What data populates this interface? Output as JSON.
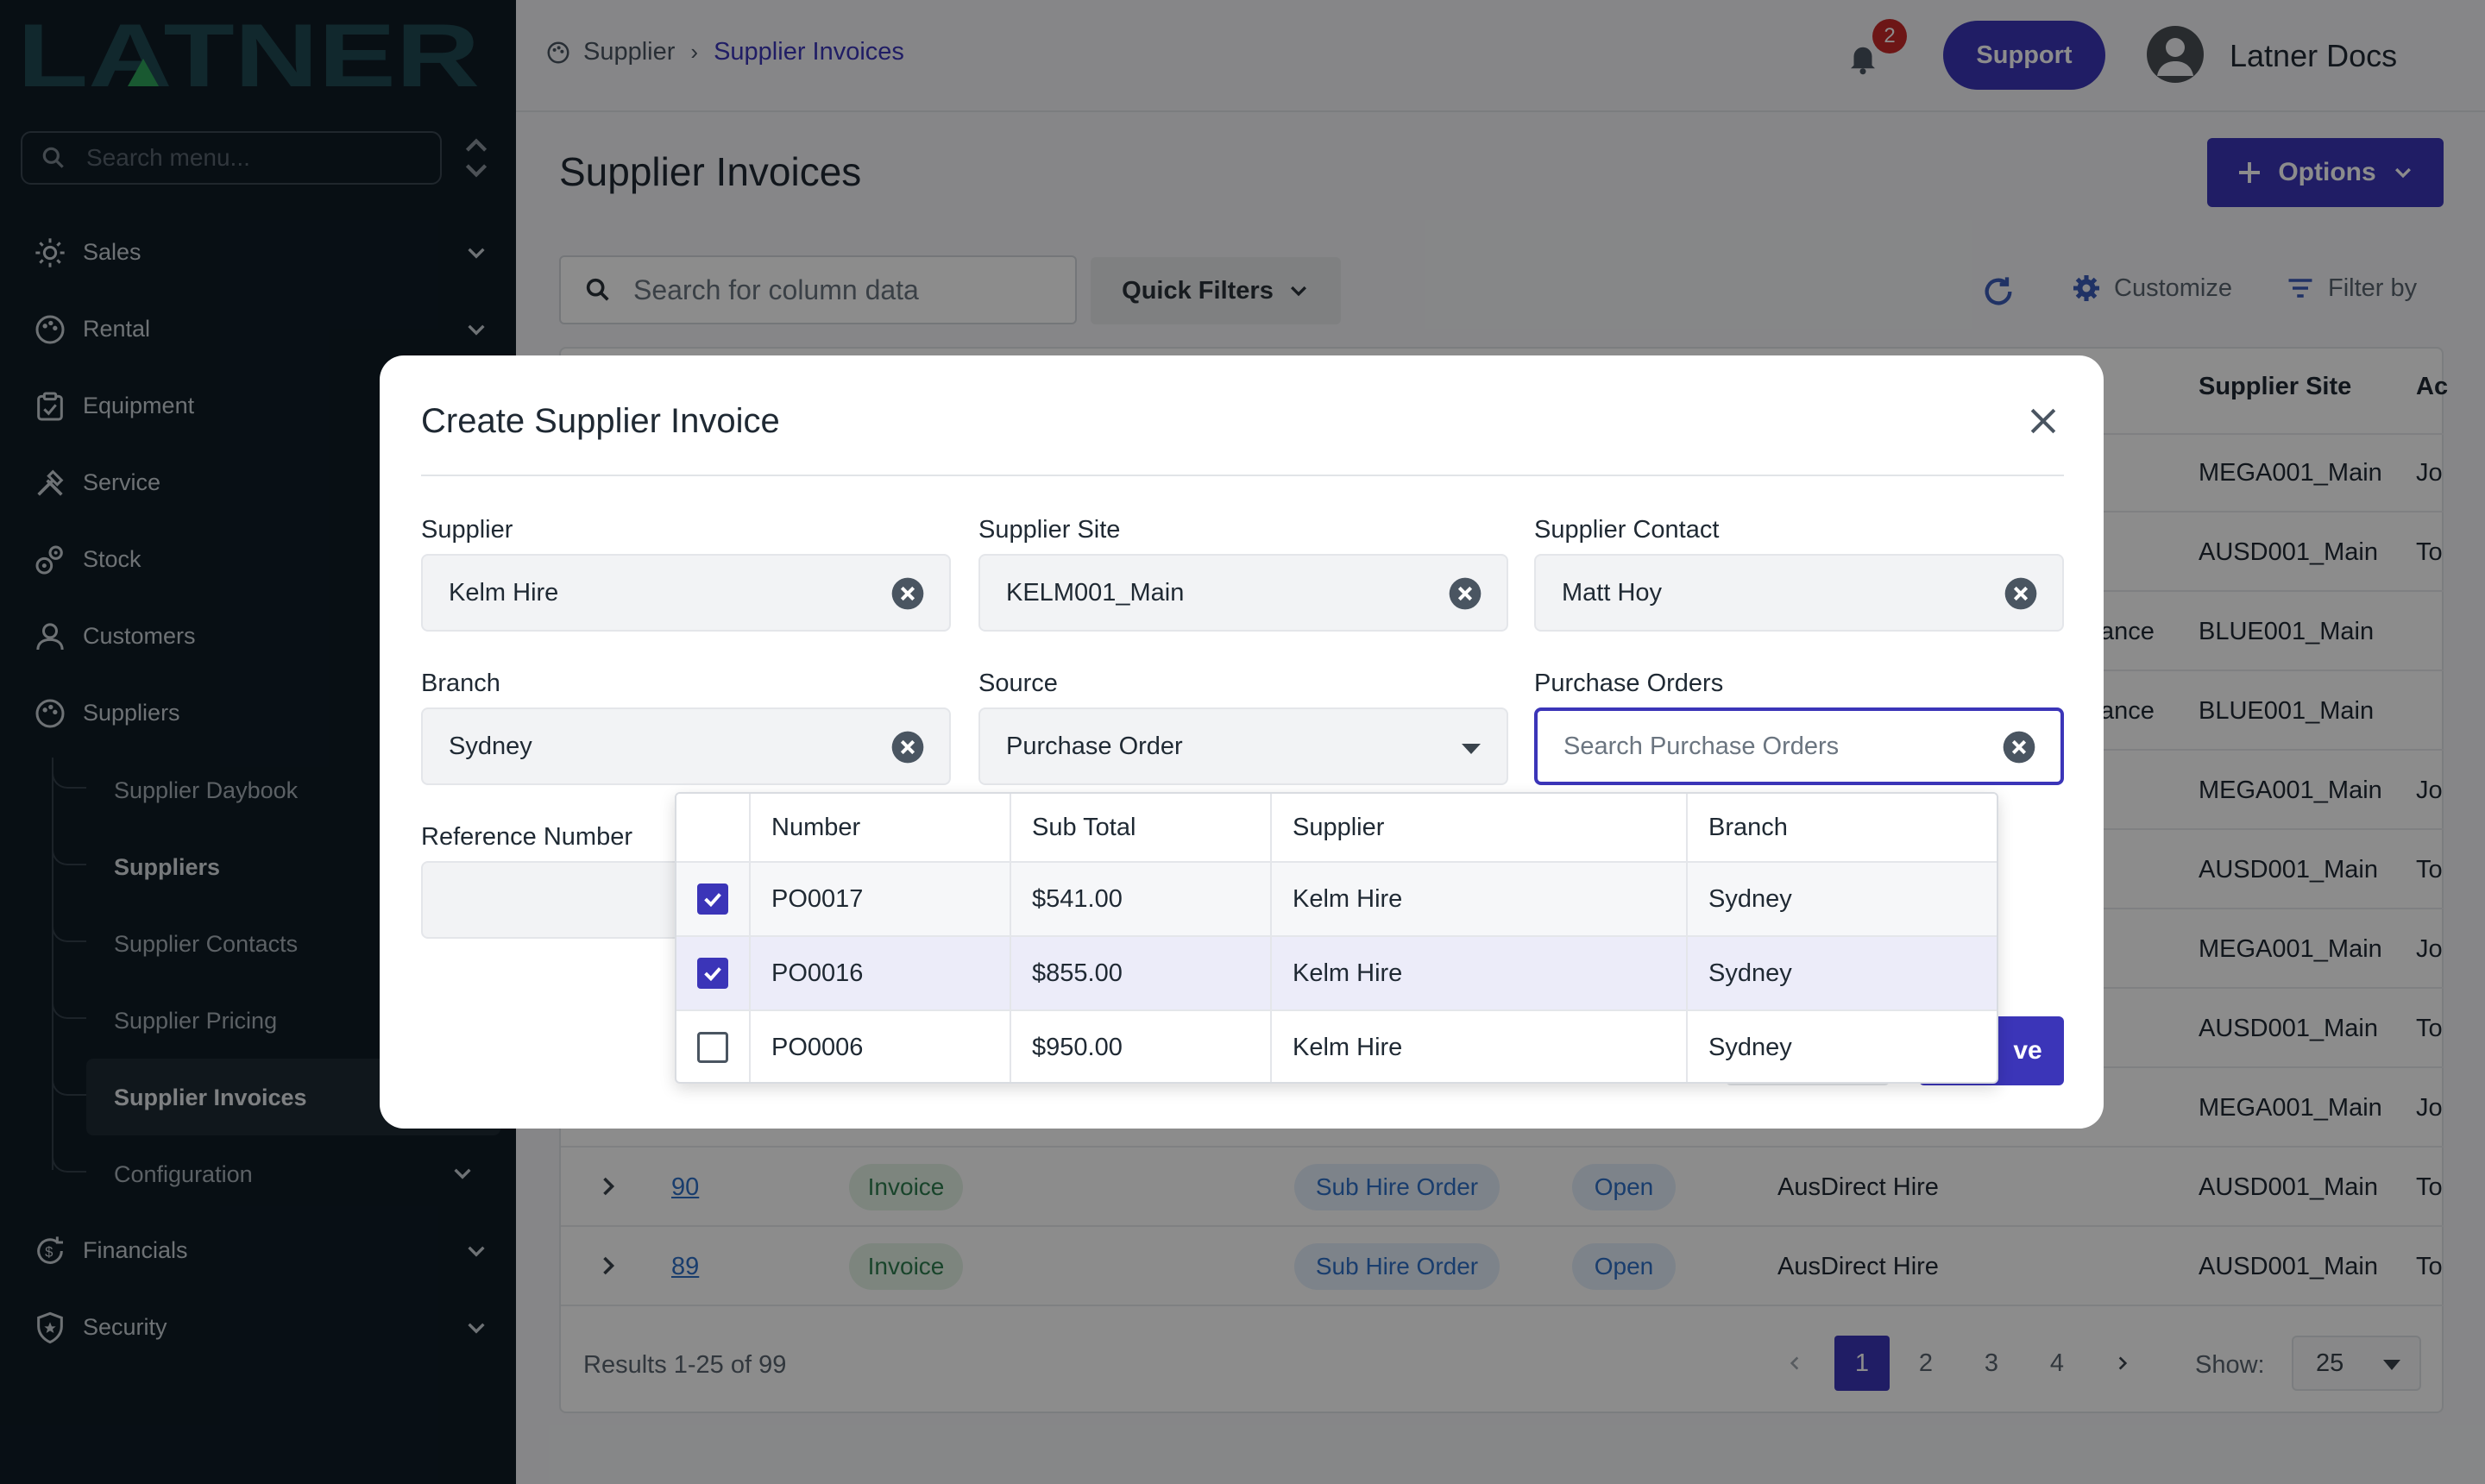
{
  "brand": {
    "name": "LATNER"
  },
  "sidebar": {
    "search_placeholder": "Search menu...",
    "items": [
      {
        "label": "Sales",
        "icon": "sales-icon"
      },
      {
        "label": "Rental",
        "icon": "rental-icon"
      },
      {
        "label": "Equipment",
        "icon": "equipment-icon"
      },
      {
        "label": "Service",
        "icon": "service-icon"
      },
      {
        "label": "Stock",
        "icon": "stock-icon"
      },
      {
        "label": "Customers",
        "icon": "customers-icon"
      },
      {
        "label": "Suppliers",
        "icon": "suppliers-icon"
      },
      {
        "label": "Financials",
        "icon": "financials-icon"
      },
      {
        "label": "Security",
        "icon": "security-icon"
      }
    ],
    "sub_items": [
      {
        "label": "Supplier Daybook"
      },
      {
        "label": "Suppliers"
      },
      {
        "label": "Supplier Contacts"
      },
      {
        "label": "Supplier Pricing"
      },
      {
        "label": "Supplier Invoices"
      },
      {
        "label": "Configuration"
      }
    ]
  },
  "header": {
    "breadcrumb": [
      "Supplier",
      "Supplier Invoices"
    ],
    "notification_count": "2",
    "support_label": "Support",
    "user_name": "Latner Docs"
  },
  "page": {
    "title": "Supplier Invoices",
    "options_label": "Options",
    "search_placeholder": "Search for column data",
    "quick_filters_label": "Quick Filters",
    "customize_label": "Customize",
    "filter_label": "Filter by"
  },
  "table": {
    "headers": {
      "supplier_site": "Supplier Site",
      "ac": "Ac"
    },
    "rows": [
      {
        "site": "MEGA001_Main",
        "ac": "Jo"
      },
      {
        "site": "AUSD001_Main",
        "ac": "To"
      },
      {
        "supp_partial": "ance",
        "site": "BLUE001_Main",
        "ac": ""
      },
      {
        "supp_partial": "ance",
        "site": "BLUE001_Main",
        "ac": ""
      },
      {
        "site": "MEGA001_Main",
        "ac": "Jo"
      },
      {
        "site": "AUSD001_Main",
        "ac": "To"
      },
      {
        "site": "MEGA001_Main",
        "ac": "Jo"
      },
      {
        "site": "AUSD001_Main",
        "ac": "To"
      },
      {
        "site": "MEGA001_Main",
        "ac": "Jo"
      },
      {
        "id": "90",
        "type": "Invoice",
        "source": "Sub Hire Order",
        "status": "Open",
        "supplier": "AusDirect Hire",
        "site": "AUSD001_Main",
        "ac": "To"
      },
      {
        "id": "89",
        "type": "Invoice",
        "source": "Sub Hire Order",
        "status": "Open",
        "supplier": "AusDirect Hire",
        "site": "AUSD001_Main",
        "ac": "To"
      }
    ],
    "results_text": "Results 1-25 of 99",
    "pages": [
      "1",
      "2",
      "3",
      "4"
    ],
    "show_label": "Show:",
    "page_size": "25"
  },
  "modal": {
    "title": "Create Supplier Invoice",
    "fields": {
      "supplier": {
        "label": "Supplier",
        "value": "Kelm Hire"
      },
      "supplier_site": {
        "label": "Supplier Site",
        "value": "KELM001_Main"
      },
      "supplier_contact": {
        "label": "Supplier Contact",
        "value": "Matt Hoy"
      },
      "branch": {
        "label": "Branch",
        "value": "Sydney"
      },
      "source": {
        "label": "Source",
        "value": "Purchase Order"
      },
      "purchase_orders": {
        "label": "Purchase Orders",
        "placeholder": "Search Purchase Orders"
      },
      "reference_number": {
        "label": "Reference Number",
        "value": ""
      }
    },
    "save_label_partial": "ve",
    "po_table": {
      "headers": [
        "Number",
        "Sub Total",
        "Supplier",
        "Branch"
      ],
      "rows": [
        {
          "checked": true,
          "number": "PO0017",
          "subtotal": "$541.00",
          "supplier": "Kelm Hire",
          "branch": "Sydney"
        },
        {
          "checked": true,
          "number": "PO0016",
          "subtotal": "$855.00",
          "supplier": "Kelm Hire",
          "branch": "Sydney"
        },
        {
          "checked": false,
          "number": "PO0006",
          "subtotal": "$950.00",
          "supplier": "Kelm Hire",
          "branch": "Sydney"
        }
      ]
    }
  },
  "colors": {
    "accent": "#3b35b8",
    "sidebar_bg": "#0f1c26",
    "logo": "#1f4a52",
    "logo_triangle": "#2fa35a"
  }
}
